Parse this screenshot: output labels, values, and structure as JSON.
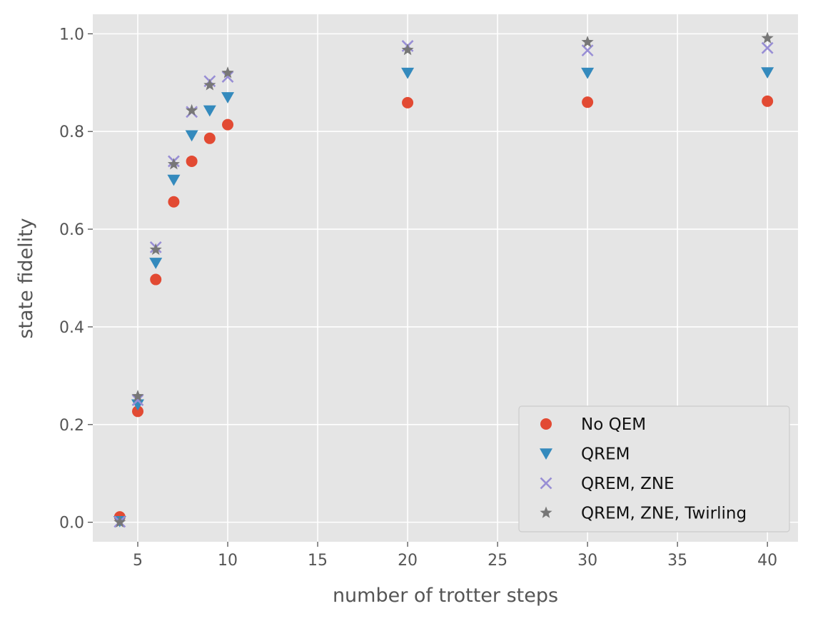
{
  "chart_data": {
    "type": "scatter",
    "xlabel": "number of trotter steps",
    "ylabel": "state fidelity",
    "xlim": [
      2.5,
      41.7
    ],
    "ylim": [
      -0.04,
      1.04
    ],
    "xticks": [
      5,
      10,
      15,
      20,
      25,
      30,
      35,
      40
    ],
    "yticks": [
      0.0,
      0.2,
      0.4,
      0.6,
      0.8,
      1.0
    ],
    "xtick_labels": [
      "5",
      "10",
      "15",
      "20",
      "25",
      "30",
      "35",
      "40"
    ],
    "ytick_labels": [
      "0.0",
      "0.2",
      "0.4",
      "0.6",
      "0.8",
      "1.0"
    ],
    "grid": true,
    "background": "#e5e5e5",
    "legend_position": "lower-right",
    "x": [
      4,
      5,
      6,
      7,
      8,
      9,
      10,
      20,
      30,
      40
    ],
    "series": [
      {
        "name": "No QEM",
        "marker": "circle",
        "color": "#e24a33",
        "values": [
          0.011,
          0.227,
          0.497,
          0.656,
          0.739,
          0.786,
          0.814,
          0.859,
          0.86,
          0.862
        ]
      },
      {
        "name": "QREM",
        "marker": "triangle-down",
        "color": "#348abd",
        "values": [
          0.002,
          0.241,
          0.531,
          0.701,
          0.792,
          0.843,
          0.87,
          0.92,
          0.92,
          0.921
        ]
      },
      {
        "name": "QREM, ZNE",
        "marker": "x",
        "color": "#988ed5",
        "values": [
          0.001,
          0.25,
          0.563,
          0.739,
          0.84,
          0.903,
          0.912,
          0.975,
          0.966,
          0.971
        ]
      },
      {
        "name": "QREM, ZNE, Twirling",
        "marker": "star",
        "color": "#777777",
        "values": [
          0.0,
          0.258,
          0.558,
          0.733,
          0.843,
          0.895,
          0.92,
          0.967,
          0.983,
          0.991
        ]
      }
    ]
  }
}
